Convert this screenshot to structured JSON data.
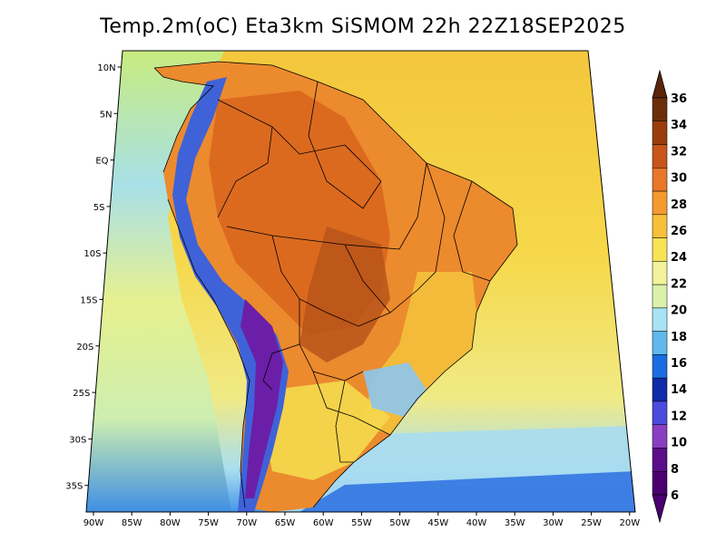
{
  "title": "Temp.2m(oC) Eta3km SiSMOM 22h 22Z18SEP2025",
  "map": {
    "projection": "conic",
    "region": "South America",
    "lat_range": [
      -38,
      12
    ],
    "lon_range": [
      -90,
      -20
    ]
  },
  "axes": {
    "lat_ticks": [
      "10N",
      "5N",
      "EQ",
      "5S",
      "10S",
      "15S",
      "20S",
      "25S",
      "30S",
      "35S"
    ],
    "lon_ticks": [
      "90W",
      "85W",
      "80W",
      "75W",
      "70W",
      "65W",
      "60W",
      "55W",
      "50W",
      "45W",
      "40W",
      "35W",
      "30W",
      "25W",
      "20W"
    ]
  },
  "colorbar": {
    "labels": [
      "36",
      "34",
      "32",
      "30",
      "28",
      "26",
      "24",
      "22",
      "20",
      "18",
      "16",
      "14",
      "12",
      "10",
      "8",
      "6"
    ],
    "colors": [
      "#6a2f0a",
      "#9a3d0c",
      "#c8551a",
      "#e8772a",
      "#f49a2e",
      "#f6c03a",
      "#f7e455",
      "#f2f39a",
      "#d9f1a8",
      "#a7e3f5",
      "#5fb9ec",
      "#1a6de0",
      "#0f2ba8",
      "#4b4bde",
      "#8a3fc2",
      "#5c0e8a",
      "#4a0070"
    ],
    "top_color": "#5a2508",
    "bottom_color": "#4a0070"
  }
}
